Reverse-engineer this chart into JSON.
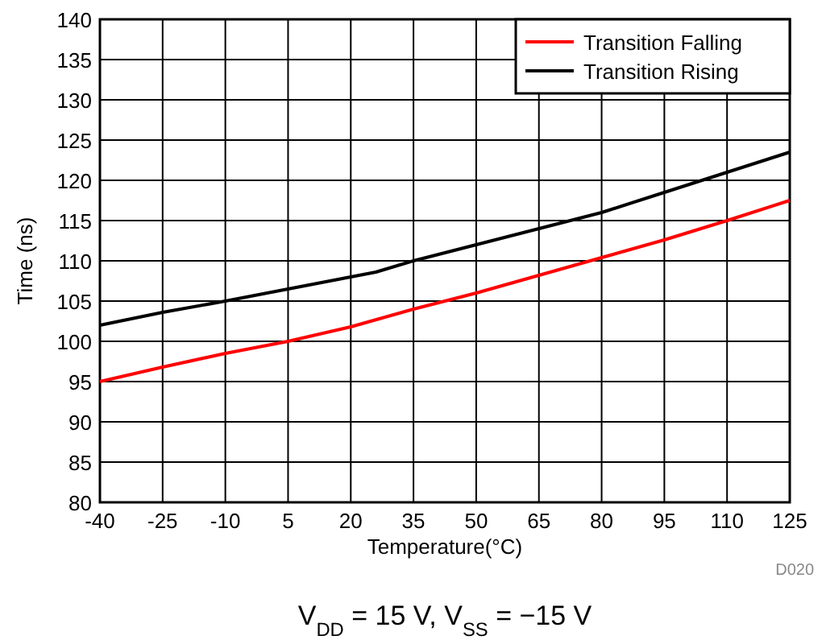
{
  "chart_data": {
    "type": "line",
    "xlabel": "Temperature(°C)",
    "ylabel": "Time (ns)",
    "xlim": [
      -40,
      125
    ],
    "xticks": [
      -40,
      -25,
      -10,
      5,
      20,
      35,
      50,
      65,
      80,
      95,
      110,
      125
    ],
    "ylim": [
      80,
      140
    ],
    "yticks": [
      80,
      85,
      90,
      95,
      100,
      105,
      110,
      115,
      120,
      125,
      130,
      135,
      140
    ],
    "grid": true,
    "legend": "top right",
    "line_style": "solid",
    "series": [
      {
        "name": "Transition Falling",
        "color": "#ff0000",
        "x": [
          -40,
          -25,
          -10,
          5,
          20,
          35,
          50,
          65,
          80,
          95,
          110,
          125
        ],
        "values": [
          95,
          96.8,
          98.5,
          100,
          101.8,
          104,
          106,
          108.2,
          110.4,
          112.6,
          115,
          117.5
        ]
      },
      {
        "name": "Transition Rising",
        "color": "#000000",
        "x": [
          -40,
          -25,
          -10,
          5,
          20,
          26,
          35,
          50,
          65,
          80,
          95,
          110,
          125
        ],
        "values": [
          102,
          103.6,
          105,
          106.5,
          108,
          108.6,
          110,
          112,
          114,
          116,
          118.5,
          121,
          123.5
        ]
      }
    ],
    "annotations": [
      "D020",
      "V$_{DD}$ = 15 V, V$_{SS}$ = −15 V"
    ]
  }
}
